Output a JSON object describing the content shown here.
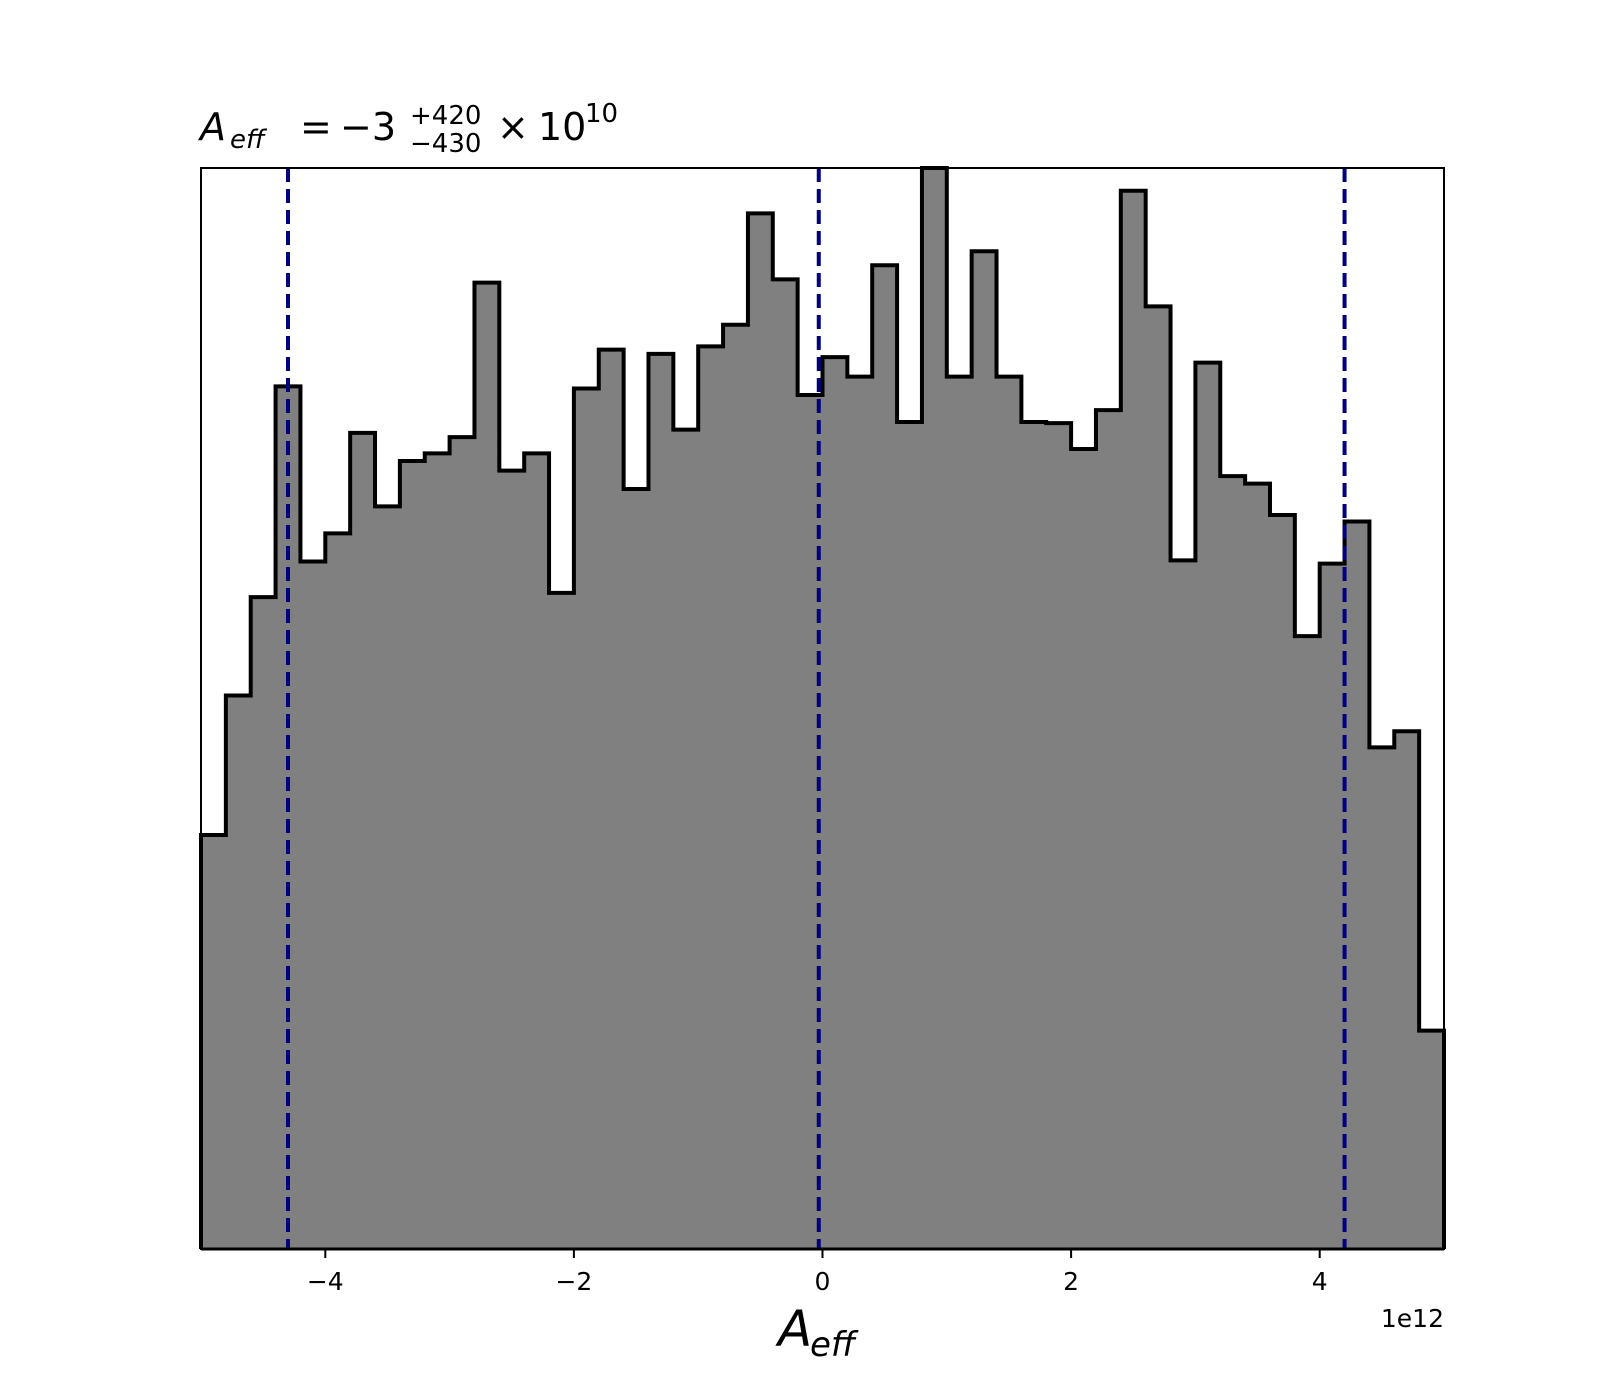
{
  "chart_data": {
    "type": "histogram",
    "title": {
      "variable": "A",
      "variable_sub": "eff",
      "equals": "=",
      "median": "−3",
      "err_plus": "+420",
      "err_minus": "−430",
      "times": "×",
      "exp_base": "10",
      "exp_power": "10"
    },
    "xlabel": {
      "main": "A",
      "sub": "eff"
    },
    "x_offset_text": "1e12",
    "xlim": [
      -5.0,
      5.0
    ],
    "ylim": [
      0,
      1.0
    ],
    "yaxis_visible": false,
    "grid": false,
    "xticks": [
      {
        "value": -4,
        "label": "−4"
      },
      {
        "value": -2,
        "label": "−2"
      },
      {
        "value": 0,
        "label": "0"
      },
      {
        "value": 2,
        "label": "2"
      },
      {
        "value": 4,
        "label": "4"
      }
    ],
    "bins": {
      "start": -5.0,
      "width": 0.2,
      "values": [
        0.383,
        0.512,
        0.603,
        0.798,
        0.636,
        0.662,
        0.755,
        0.687,
        0.729,
        0.736,
        0.751,
        0.894,
        0.72,
        0.736,
        0.607,
        0.796,
        0.832,
        0.703,
        0.828,
        0.758,
        0.835,
        0.855,
        0.958,
        0.897,
        0.79,
        0.825,
        0.807,
        0.91,
        0.765,
        1.0,
        0.807,
        0.923,
        0.807,
        0.765,
        0.764,
        0.74,
        0.776,
        0.979,
        0.872,
        0.637,
        0.82,
        0.715,
        0.708,
        0.679,
        0.567,
        0.634,
        0.673,
        0.464,
        0.479,
        0.202
      ]
    },
    "vlines": [
      {
        "x": -4.3,
        "role": "lower"
      },
      {
        "x": -0.03,
        "role": "median"
      },
      {
        "x": 4.2,
        "role": "upper"
      }
    ],
    "colors": {
      "fill": "#808080",
      "edge": "#000000",
      "vline": "#000080",
      "axes": "#000000"
    }
  }
}
